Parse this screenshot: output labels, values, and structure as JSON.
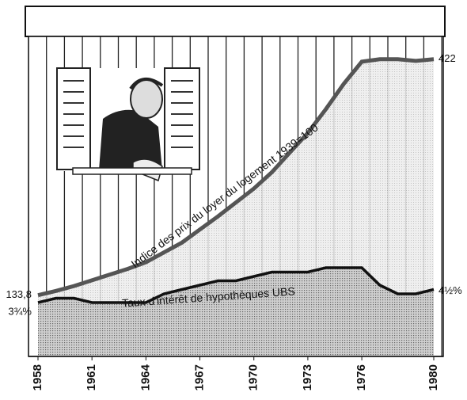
{
  "chart_data": {
    "type": "line",
    "x": [
      1958,
      1959,
      1960,
      1961,
      1962,
      1963,
      1964,
      1965,
      1966,
      1967,
      1968,
      1969,
      1970,
      1971,
      1972,
      1973,
      1974,
      1975,
      1976,
      1977,
      1978,
      1979,
      1980
    ],
    "xlim": [
      1958,
      1980
    ],
    "xticks": [
      1958,
      1961,
      1964,
      1967,
      1970,
      1973,
      1976,
      1980
    ],
    "ylim": [
      59,
      475
    ],
    "y2lim": [
      0.66,
      20.2
    ],
    "series": [
      {
        "name": "Indice des prix du loyer du logement 1939=100",
        "color": "#555555",
        "values": [
          133.8,
          139,
          145,
          152,
          159,
          166,
          174,
          186,
          198,
          214,
          230,
          247,
          264,
          284,
          308,
          332,
          361,
          392,
          419,
          422,
          422,
          420,
          422
        ],
        "value_labels": [
          "133,8",
          null,
          null,
          null,
          null,
          null,
          null,
          null,
          null,
          null,
          null,
          null,
          null,
          null,
          null,
          null,
          null,
          null,
          null,
          null,
          null,
          null,
          "422"
        ]
      },
      {
        "name": "Taux d'intérêt de hypothèques UBS",
        "color": "#111111",
        "axis": "y2",
        "values": [
          3.75,
          4,
          4,
          3.75,
          3.75,
          3.75,
          3.75,
          4.25,
          4.5,
          4.75,
          5,
          5,
          5.25,
          5.5,
          5.5,
          5.5,
          5.75,
          5.75,
          5.75,
          4.75,
          4.25,
          4.25,
          4.5
        ],
        "value_labels": [
          "3¾%",
          null,
          null,
          null,
          null,
          null,
          null,
          null,
          null,
          null,
          null,
          null,
          null,
          null,
          null,
          null,
          null,
          null,
          null,
          null,
          null,
          null,
          "4½%"
        ]
      }
    ]
  }
}
